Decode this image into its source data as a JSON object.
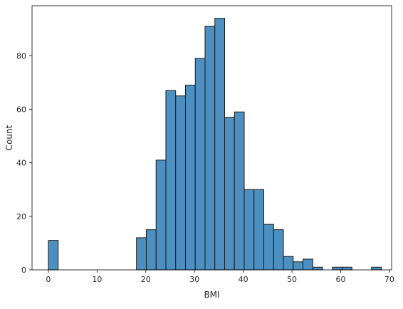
{
  "chart_data": {
    "type": "bar",
    "title": "",
    "xlabel": "BMI",
    "ylabel": "Count",
    "xlim": [
      -3.35,
      70.45
    ],
    "ylim": [
      0,
      98.7
    ],
    "xticks": [
      0,
      10,
      20,
      30,
      40,
      50,
      60,
      70
    ],
    "yticks": [
      0,
      20,
      40,
      60,
      80
    ],
    "grid": false,
    "bar_color": "#4c8fc0",
    "edge_color": "#1a1a1a",
    "bins": [
      {
        "x0": 0.0,
        "x1": 2.01,
        "count": 11
      },
      {
        "x0": 2.01,
        "x1": 4.02,
        "count": 0
      },
      {
        "x0": 4.02,
        "x1": 6.03,
        "count": 0
      },
      {
        "x0": 6.03,
        "x1": 8.04,
        "count": 0
      },
      {
        "x0": 8.04,
        "x1": 10.05,
        "count": 0
      },
      {
        "x0": 10.05,
        "x1": 12.06,
        "count": 0
      },
      {
        "x0": 12.06,
        "x1": 14.07,
        "count": 0
      },
      {
        "x0": 14.07,
        "x1": 16.08,
        "count": 0
      },
      {
        "x0": 16.08,
        "x1": 18.09,
        "count": 0
      },
      {
        "x0": 18.09,
        "x1": 20.1,
        "count": 12
      },
      {
        "x0": 20.1,
        "x1": 22.11,
        "count": 15
      },
      {
        "x0": 22.11,
        "x1": 24.12,
        "count": 41
      },
      {
        "x0": 24.12,
        "x1": 26.13,
        "count": 67
      },
      {
        "x0": 26.13,
        "x1": 28.14,
        "count": 65
      },
      {
        "x0": 28.14,
        "x1": 30.15,
        "count": 69
      },
      {
        "x0": 30.15,
        "x1": 32.16,
        "count": 79
      },
      {
        "x0": 32.16,
        "x1": 34.17,
        "count": 91
      },
      {
        "x0": 34.17,
        "x1": 36.18,
        "count": 94
      },
      {
        "x0": 36.18,
        "x1": 38.19,
        "count": 57
      },
      {
        "x0": 38.19,
        "x1": 40.2,
        "count": 59
      },
      {
        "x0": 40.2,
        "x1": 42.21,
        "count": 30
      },
      {
        "x0": 42.21,
        "x1": 44.22,
        "count": 30
      },
      {
        "x0": 44.22,
        "x1": 46.23,
        "count": 17
      },
      {
        "x0": 46.23,
        "x1": 48.24,
        "count": 15
      },
      {
        "x0": 48.24,
        "x1": 50.25,
        "count": 5
      },
      {
        "x0": 50.25,
        "x1": 52.26,
        "count": 3
      },
      {
        "x0": 52.26,
        "x1": 54.27,
        "count": 4
      },
      {
        "x0": 54.27,
        "x1": 56.28,
        "count": 1
      },
      {
        "x0": 56.28,
        "x1": 58.29,
        "count": 0
      },
      {
        "x0": 58.29,
        "x1": 60.3,
        "count": 1
      },
      {
        "x0": 60.3,
        "x1": 62.31,
        "count": 1
      },
      {
        "x0": 62.31,
        "x1": 64.32,
        "count": 0
      },
      {
        "x0": 64.32,
        "x1": 66.33,
        "count": 0
      },
      {
        "x0": 66.33,
        "x1": 68.34,
        "count": 1
      }
    ]
  }
}
